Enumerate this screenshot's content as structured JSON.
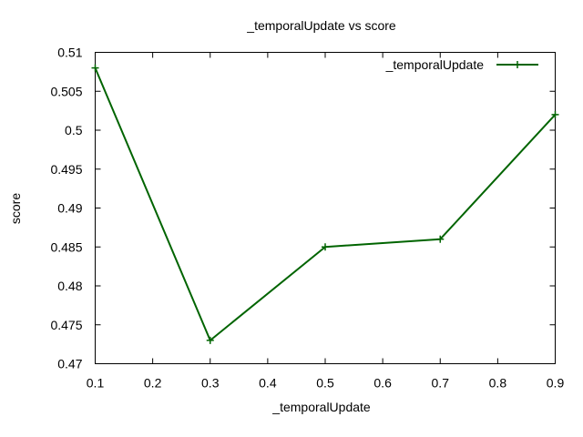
{
  "chart_data": {
    "type": "line",
    "title": "_temporalUpdate vs score",
    "xlabel": "_temporalUpdate",
    "ylabel": "score",
    "xlim": [
      0.1,
      0.9
    ],
    "ylim": [
      0.47,
      0.51
    ],
    "xticks": [
      "0.1",
      "0.2",
      "0.3",
      "0.4",
      "0.5",
      "0.6",
      "0.7",
      "0.8",
      "0.9"
    ],
    "yticks": [
      "0.47",
      "0.475",
      "0.48",
      "0.485",
      "0.49",
      "0.495",
      "0.5",
      "0.505",
      "0.51"
    ],
    "grid": false,
    "legend_position": "top-right",
    "series": [
      {
        "name": "_temporalUpdate",
        "color": "#006400",
        "marker": "plus",
        "x": [
          0.1,
          0.3,
          0.5,
          0.7,
          0.9
        ],
        "y": [
          0.508,
          0.473,
          0.485,
          0.486,
          0.502
        ]
      }
    ]
  }
}
